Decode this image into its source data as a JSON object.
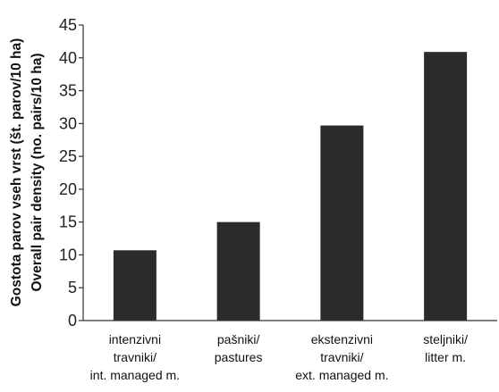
{
  "chart_data": {
    "type": "bar",
    "categories": [
      [
        "intenzivni",
        "travniki/",
        "int. managed m."
      ],
      [
        "pašniki/",
        "pastures"
      ],
      [
        "ekstenzivni",
        "travniki/",
        "ext. managed m."
      ],
      [
        "steljniki/",
        "litter m."
      ]
    ],
    "values": [
      10.7,
      15.0,
      29.7,
      40.9
    ],
    "ylabel": [
      "Gostota parov vseh vrst (št. parov/10 ha)",
      "Overall pair density (no. pairs/10 ha)"
    ],
    "xlabel": "",
    "title": "",
    "ylim": [
      0,
      45
    ],
    "yticks": [
      0,
      5,
      10,
      15,
      20,
      25,
      30,
      35,
      40,
      45
    ],
    "grid": false,
    "bar_color": "#2b2b2b"
  }
}
